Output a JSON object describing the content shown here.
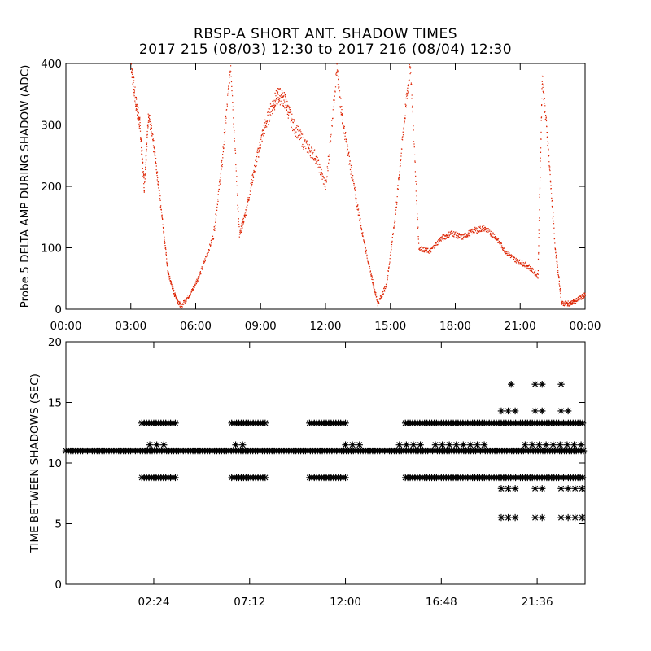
{
  "header": {
    "title_line1": "RBSP-A SHORT ANT. SHADOW TIMES",
    "title_line2": "2017 215 (08/03) 12:30 to 2017 216 (08/04) 12:30"
  },
  "colors": {
    "amp_points": "#dd2200",
    "interval_points": "#000000",
    "axes": "#000000"
  },
  "chart_data": [
    {
      "type": "scatter",
      "title": "",
      "ylabel": "Probe 5 DELTA AMP DURING SHADOW (ADC)",
      "xlabel": "",
      "xlim_hours": [
        0,
        24
      ],
      "ylim": [
        0,
        400
      ],
      "x_ticks": [
        "00:00",
        "03:00",
        "06:00",
        "09:00",
        "12:00",
        "15:00",
        "18:00",
        "21:00",
        "00:00"
      ],
      "y_ticks": [
        "0",
        "100",
        "200",
        "300",
        "400"
      ],
      "grid": false,
      "series": [
        {
          "marker": "dot",
          "color": "#dd2200",
          "trace_hours_value": [
            [
              3.0,
              400
            ],
            [
              3.2,
              340
            ],
            [
              3.4,
              300
            ],
            [
              3.6,
              200
            ],
            [
              3.8,
              320
            ],
            [
              4.1,
              250
            ],
            [
              4.4,
              160
            ],
            [
              4.7,
              60
            ],
            [
              5.0,
              25
            ],
            [
              5.3,
              5
            ],
            [
              5.8,
              30
            ],
            [
              6.2,
              60
            ],
            [
              6.8,
              120
            ],
            [
              7.2,
              240
            ],
            [
              7.6,
              400
            ],
            [
              8.0,
              120
            ],
            [
              8.3,
              160
            ],
            [
              8.7,
              230
            ],
            [
              9.1,
              290
            ],
            [
              9.5,
              330
            ],
            [
              9.8,
              350
            ],
            [
              10.1,
              340
            ],
            [
              10.5,
              300
            ],
            [
              11.0,
              270
            ],
            [
              11.5,
              250
            ],
            [
              12.0,
              200
            ],
            [
              12.5,
              390
            ],
            [
              12.8,
              300
            ],
            [
              13.2,
              220
            ],
            [
              13.6,
              140
            ],
            [
              14.0,
              70
            ],
            [
              14.4,
              10
            ],
            [
              14.8,
              40
            ],
            [
              15.2,
              150
            ],
            [
              15.6,
              300
            ],
            [
              15.9,
              400
            ],
            [
              16.3,
              100
            ],
            [
              16.8,
              95
            ],
            [
              17.3,
              115
            ],
            [
              17.8,
              125
            ],
            [
              18.3,
              118
            ],
            [
              18.8,
              128
            ],
            [
              19.3,
              133
            ],
            [
              19.8,
              120
            ],
            [
              20.3,
              95
            ],
            [
              20.8,
              80
            ],
            [
              21.3,
              72
            ],
            [
              21.8,
              55
            ],
            [
              22.0,
              380
            ],
            [
              22.3,
              250
            ],
            [
              22.6,
              100
            ],
            [
              22.9,
              10
            ],
            [
              23.3,
              10
            ],
            [
              23.6,
              15
            ],
            [
              24.0,
              25
            ]
          ]
        }
      ]
    },
    {
      "type": "scatter",
      "title": "",
      "ylabel": "TIME BETWEEN SHADOWS (SEC)",
      "xlabel": "",
      "xlim_hours": [
        -2.0,
        24.0
      ],
      "ylim": [
        0,
        20
      ],
      "x_ticks": [
        "02:24",
        "07:12",
        "12:00",
        "16:48",
        "21:36"
      ],
      "y_ticks": [
        "0",
        "5",
        "10",
        "15",
        "20"
      ],
      "grid": false,
      "series": [
        {
          "marker": "asterisk",
          "color": "#000000",
          "levels_sec": [
            5.5,
            7.9,
            8.8,
            11.0,
            13.3,
            14.3,
            16.5
          ],
          "bands": [
            {
              "value": 11.0,
              "spans_hours": [
                [
                  -2.0,
                  24.0
                ]
              ]
            },
            {
              "value": 13.3,
              "spans_hours": [
                [
                  1.8,
                  3.5
                ],
                [
                  6.3,
                  8.0
                ],
                [
                  10.2,
                  12.0
                ],
                [
                  15.0,
                  24.0
                ]
              ]
            },
            {
              "value": 8.8,
              "spans_hours": [
                [
                  1.8,
                  3.5
                ],
                [
                  6.3,
                  8.0
                ],
                [
                  10.2,
                  12.0
                ],
                [
                  15.0,
                  24.0
                ]
              ]
            },
            {
              "value": 11.5,
              "spans_hours": [
                [
                  2.2,
                  3.2
                ],
                [
                  6.5,
                  7.0
                ],
                [
                  12.0,
                  13.0
                ],
                [
                  14.7,
                  16.0
                ],
                [
                  16.5,
                  19.0
                ],
                [
                  21.0,
                  24.0
                ]
              ]
            },
            {
              "value": 14.3,
              "spans_hours": [
                [
                  19.8,
                  20.6
                ],
                [
                  21.5,
                  22.0
                ],
                [
                  22.8,
                  23.2
                ]
              ]
            },
            {
              "value": 7.9,
              "spans_hours": [
                [
                  19.8,
                  20.6
                ],
                [
                  21.5,
                  22.0
                ],
                [
                  22.8,
                  24.0
                ]
              ]
            },
            {
              "value": 5.5,
              "spans_hours": [
                [
                  19.8,
                  20.6
                ],
                [
                  21.5,
                  22.0
                ],
                [
                  22.8,
                  24.0
                ]
              ]
            },
            {
              "value": 16.5,
              "spans_hours": [
                [
                  20.3,
                  20.6
                ],
                [
                  21.5,
                  22.0
                ],
                [
                  22.8,
                  23.1
                ]
              ]
            }
          ]
        }
      ]
    }
  ]
}
